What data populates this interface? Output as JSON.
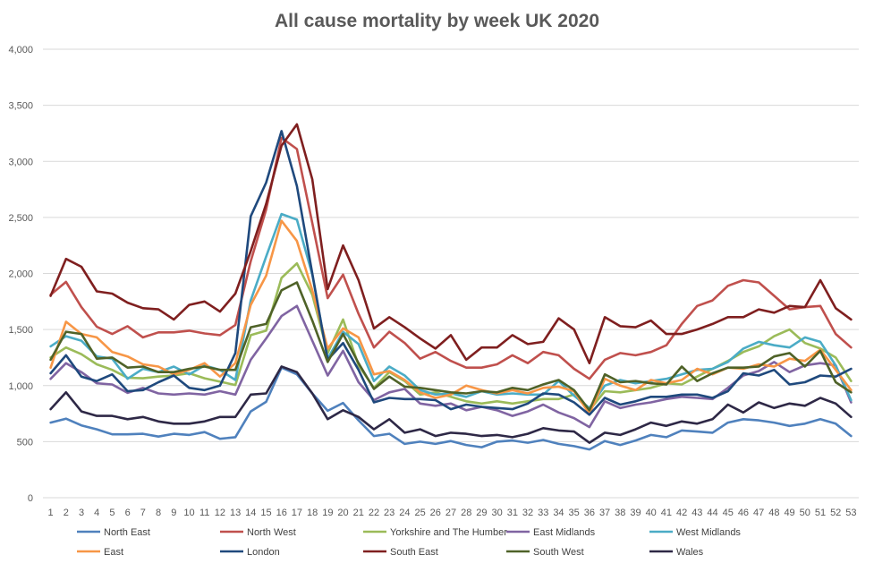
{
  "chart_data": {
    "type": "line",
    "title": "All cause mortality by week UK 2020",
    "xlabel": "",
    "ylabel": "",
    "ylim": [
      0,
      4000
    ],
    "yticks": [
      "0",
      "500",
      "1,000",
      "1,500",
      "2,000",
      "2,500",
      "3,000",
      "3,500",
      "4,000"
    ],
    "yticks_values": [
      0,
      500,
      1000,
      1500,
      2000,
      2500,
      3000,
      3500,
      4000
    ],
    "x": [
      1,
      2,
      3,
      4,
      5,
      6,
      7,
      8,
      9,
      10,
      11,
      12,
      13,
      14,
      15,
      16,
      17,
      18,
      19,
      20,
      21,
      22,
      23,
      24,
      25,
      26,
      27,
      28,
      29,
      30,
      31,
      32,
      33,
      34,
      35,
      36,
      37,
      38,
      39,
      40,
      41,
      42,
      43,
      44,
      45,
      46,
      47,
      48,
      49,
      50,
      51,
      52,
      53
    ],
    "grid": "horizontal",
    "legend_position": "bottom",
    "series": [
      {
        "name": "North East",
        "color": "#4f81bd",
        "values": [
          670,
          705,
          645,
          610,
          565,
          565,
          570,
          545,
          570,
          560,
          585,
          525,
          540,
          770,
          855,
          1160,
          1100,
          930,
          775,
          845,
          690,
          550,
          570,
          480,
          500,
          480,
          505,
          470,
          450,
          500,
          510,
          490,
          515,
          480,
          460,
          430,
          505,
          470,
          510,
          560,
          540,
          600,
          590,
          580,
          670,
          700,
          690,
          670,
          640,
          660,
          700,
          660,
          550
        ]
      },
      {
        "name": "North West",
        "color": "#c0504d",
        "values": [
          1810,
          1925,
          1700,
          1525,
          1460,
          1530,
          1430,
          1475,
          1475,
          1490,
          1465,
          1450,
          1540,
          2110,
          2570,
          3210,
          3110,
          2450,
          1780,
          1990,
          1640,
          1340,
          1480,
          1380,
          1240,
          1300,
          1220,
          1160,
          1160,
          1190,
          1270,
          1200,
          1300,
          1270,
          1150,
          1060,
          1230,
          1290,
          1270,
          1300,
          1360,
          1550,
          1710,
          1760,
          1890,
          1940,
          1920,
          1800,
          1680,
          1700,
          1710,
          1460,
          1340
        ]
      },
      {
        "name": "Yorkshire and The Humber",
        "color": "#9bbb59",
        "values": [
          1250,
          1340,
          1280,
          1190,
          1140,
          1070,
          1065,
          1080,
          1090,
          1110,
          1065,
          1035,
          1005,
          1450,
          1490,
          1960,
          2090,
          1810,
          1290,
          1590,
          1180,
          980,
          1120,
          1040,
          920,
          940,
          900,
          860,
          840,
          860,
          840,
          860,
          880,
          880,
          920,
          780,
          950,
          940,
          960,
          980,
          1020,
          1010,
          1080,
          1150,
          1220,
          1300,
          1350,
          1440,
          1500,
          1380,
          1330,
          1250,
          1040
        ]
      },
      {
        "name": "East Midlands",
        "color": "#8064a2",
        "values": [
          1060,
          1200,
          1120,
          1020,
          1010,
          935,
          980,
          930,
          920,
          930,
          920,
          950,
          920,
          1230,
          1420,
          1620,
          1710,
          1400,
          1090,
          1310,
          1030,
          870,
          940,
          970,
          840,
          820,
          840,
          780,
          810,
          780,
          730,
          770,
          830,
          760,
          710,
          630,
          860,
          800,
          830,
          850,
          880,
          900,
          890,
          880,
          980,
          1090,
          1130,
          1210,
          1120,
          1180,
          1200,
          1180,
          850
        ]
      },
      {
        "name": "West Midlands",
        "color": "#4bacc6",
        "values": [
          1350,
          1440,
          1400,
          1260,
          1240,
          1060,
          1150,
          1120,
          1170,
          1100,
          1180,
          1140,
          1050,
          1760,
          2150,
          2530,
          2480,
          1990,
          1240,
          1480,
          1370,
          1040,
          1170,
          1090,
          960,
          920,
          930,
          900,
          950,
          920,
          930,
          920,
          920,
          1040,
          910,
          800,
          1000,
          1050,
          1020,
          1040,
          1060,
          1100,
          1140,
          1150,
          1210,
          1330,
          1390,
          1360,
          1340,
          1430,
          1390,
          1180,
          870
        ]
      },
      {
        "name": "East",
        "color": "#f79646",
        "values": [
          1160,
          1570,
          1460,
          1430,
          1300,
          1260,
          1190,
          1170,
          1100,
          1140,
          1200,
          1080,
          1200,
          1720,
          1980,
          2470,
          2290,
          1850,
          1330,
          1510,
          1430,
          1100,
          1130,
          1050,
          940,
          890,
          920,
          1000,
          960,
          930,
          960,
          930,
          980,
          990,
          950,
          750,
          1060,
          1000,
          960,
          1050,
          1020,
          1050,
          1150,
          1100,
          1160,
          1150,
          1190,
          1170,
          1240,
          1220,
          1320,
          1140,
          960
        ]
      },
      {
        "name": "London",
        "color": "#1f497d",
        "values": [
          1110,
          1270,
          1080,
          1040,
          1100,
          950,
          960,
          1030,
          1090,
          980,
          960,
          1000,
          1290,
          2510,
          2810,
          3270,
          2780,
          2000,
          1230,
          1380,
          1140,
          850,
          890,
          880,
          880,
          870,
          790,
          830,
          810,
          800,
          790,
          840,
          930,
          920,
          850,
          740,
          890,
          830,
          860,
          900,
          900,
          920,
          920,
          890,
          950,
          1110,
          1090,
          1140,
          1010,
          1030,
          1090,
          1080,
          1150
        ]
      },
      {
        "name": "South East",
        "color": "#7f1f1f",
        "values": [
          1800,
          2130,
          2060,
          1840,
          1820,
          1740,
          1690,
          1680,
          1590,
          1720,
          1750,
          1660,
          1820,
          2200,
          2620,
          3140,
          3330,
          2840,
          1860,
          2250,
          1940,
          1510,
          1610,
          1520,
          1420,
          1330,
          1450,
          1230,
          1340,
          1340,
          1450,
          1370,
          1390,
          1600,
          1500,
          1200,
          1610,
          1530,
          1520,
          1580,
          1460,
          1460,
          1500,
          1550,
          1610,
          1610,
          1680,
          1650,
          1710,
          1700,
          1940,
          1690,
          1590
        ]
      },
      {
        "name": "South West",
        "color": "#4f6228",
        "values": [
          1230,
          1480,
          1460,
          1240,
          1250,
          1160,
          1170,
          1120,
          1120,
          1150,
          1170,
          1140,
          1140,
          1520,
          1550,
          1850,
          1920,
          1580,
          1210,
          1460,
          1200,
          970,
          1080,
          990,
          980,
          960,
          940,
          930,
          950,
          940,
          980,
          960,
          1010,
          1050,
          960,
          780,
          1100,
          1030,
          1040,
          1020,
          1010,
          1170,
          1040,
          1110,
          1160,
          1160,
          1170,
          1260,
          1290,
          1170,
          1310,
          1030,
          940
        ]
      },
      {
        "name": "Wales",
        "color": "#2e2846",
        "values": [
          790,
          940,
          770,
          730,
          730,
          700,
          720,
          680,
          660,
          660,
          680,
          720,
          720,
          920,
          930,
          1170,
          1120,
          930,
          700,
          780,
          720,
          610,
          700,
          580,
          610,
          550,
          580,
          570,
          550,
          560,
          540,
          570,
          620,
          600,
          590,
          490,
          580,
          560,
          610,
          670,
          640,
          680,
          660,
          700,
          830,
          760,
          850,
          800,
          840,
          820,
          890,
          840,
          720
        ]
      }
    ]
  }
}
